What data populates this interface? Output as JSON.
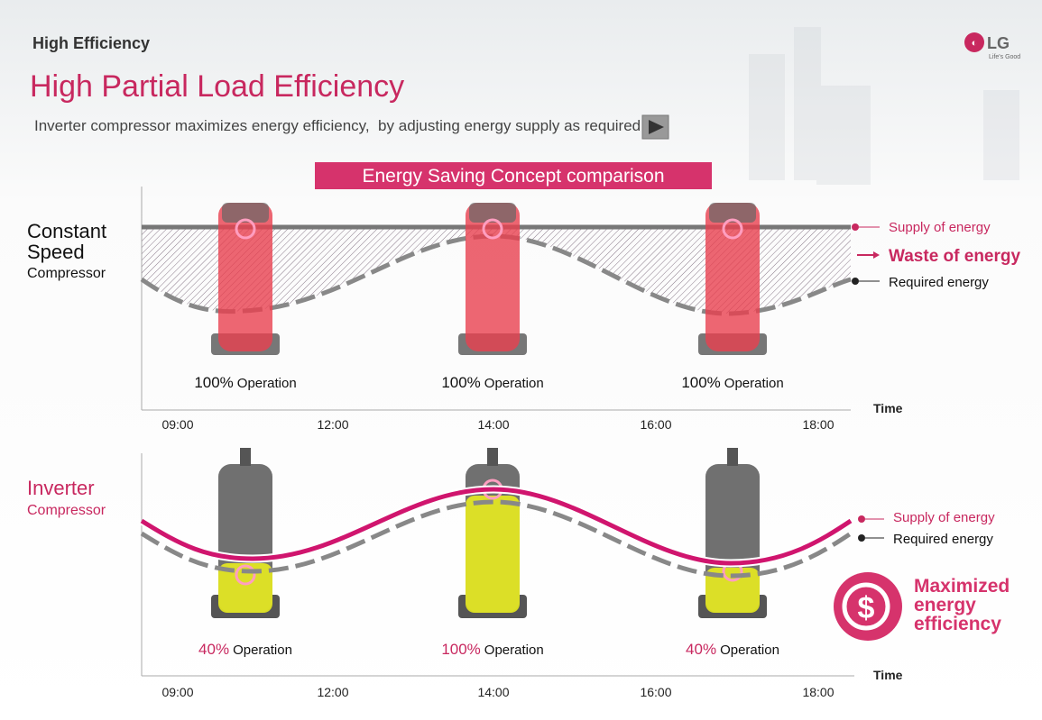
{
  "header": {
    "section": "High Efficiency",
    "title": "High Partial Load Efficiency",
    "subtitle": "Inverter compressor maximizes energy efficiency,  by adjusting energy supply as required.",
    "logo": {
      "brand": "LG",
      "tagline": "Life's Good"
    }
  },
  "banner": "Energy Saving Concept comparison",
  "panels": [
    {
      "label_main": [
        "Constant",
        "Speed"
      ],
      "label_sub": "Compressor",
      "operations": [
        {
          "percent": "100%",
          "text": "Operation"
        },
        {
          "percent": "100%",
          "text": "Operation"
        },
        {
          "percent": "100%",
          "text": "Operation"
        }
      ],
      "times": [
        "09:00",
        "12:00",
        "14:00",
        "16:00",
        "18:00"
      ],
      "axis_label": "Time",
      "legend": [
        "Supply of energy",
        "Waste of energy",
        "Required energy"
      ]
    },
    {
      "label_main": [
        "Inverter"
      ],
      "label_sub": "Compressor",
      "operations": [
        {
          "percent": "40%",
          "text": "Operation"
        },
        {
          "percent": "100%",
          "text": "Operation"
        },
        {
          "percent": "40%",
          "text": "Operation"
        }
      ],
      "times": [
        "09:00",
        "12:00",
        "14:00",
        "16:00",
        "18:00"
      ],
      "axis_label": "Time",
      "legend": [
        "Supply of energy",
        "Required energy"
      ]
    }
  ],
  "badge": [
    "Maximized",
    "energy",
    "efficiency"
  ]
}
